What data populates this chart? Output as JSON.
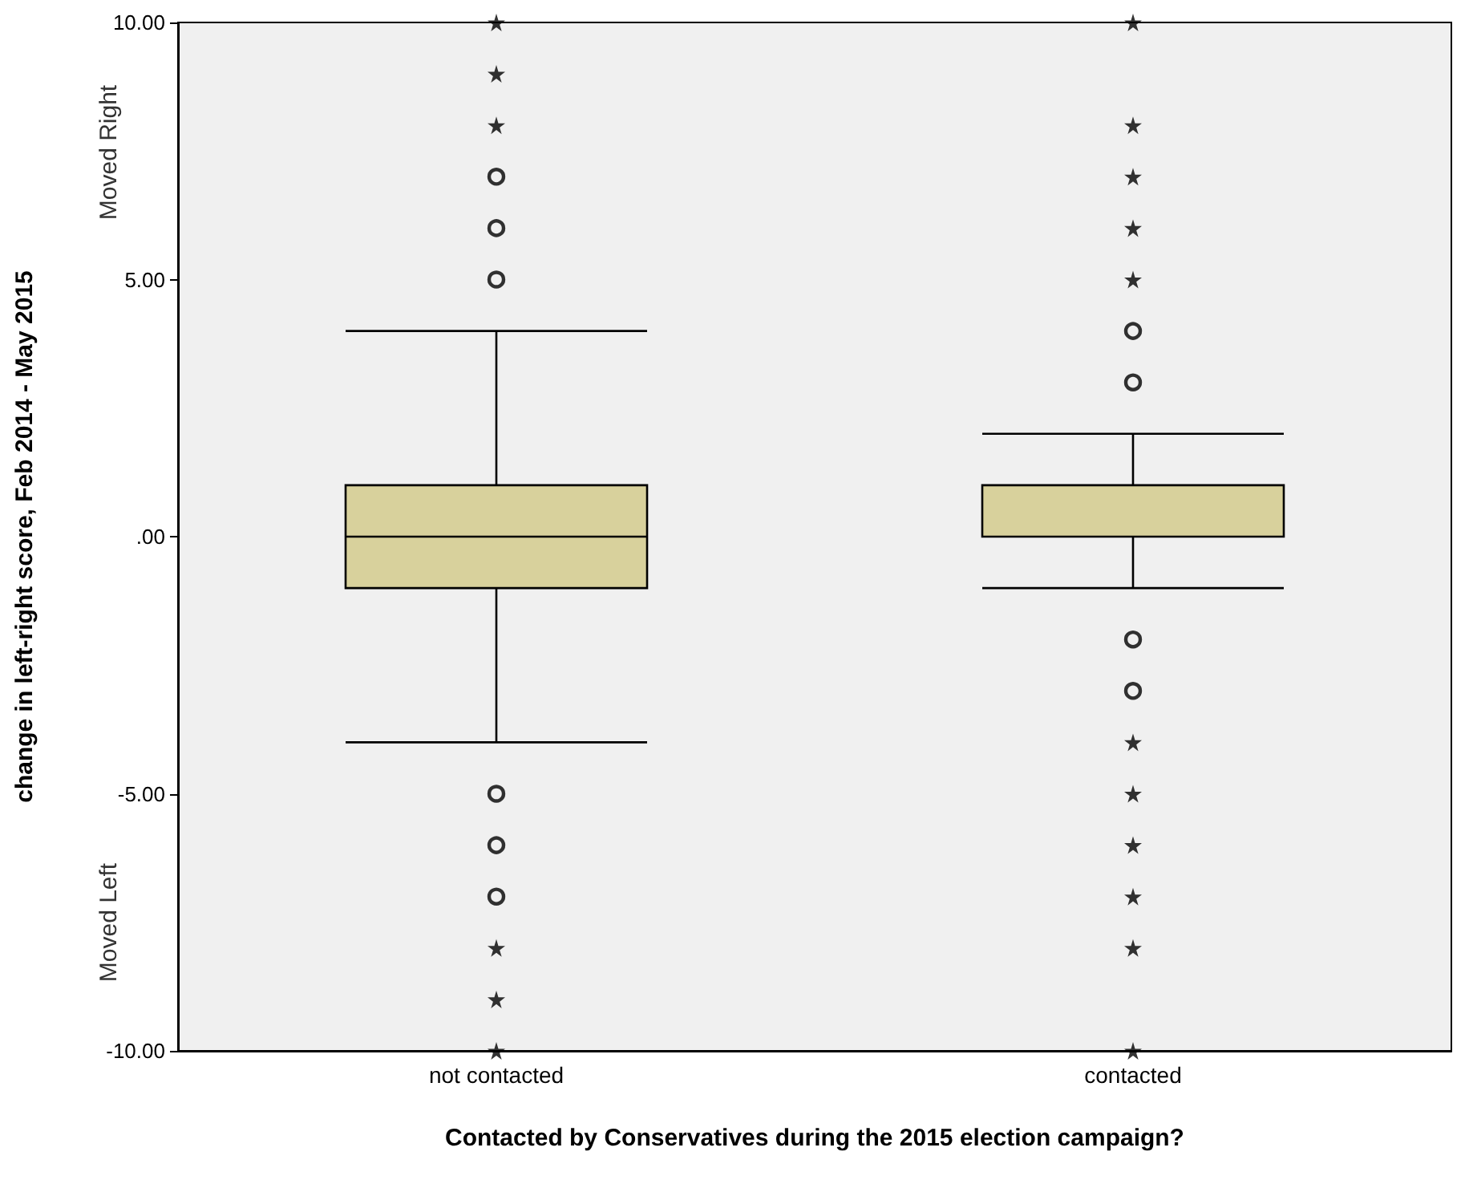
{
  "chart_data": {
    "type": "box",
    "xlabel": "Contacted by Conservatives during the 2015 election campaign?",
    "ylabel": "change in left-right score, Feb 2014 - May 2015",
    "annotations": [
      "Moved Right",
      "Moved Left"
    ],
    "categories": [
      "not contacted",
      "contacted"
    ],
    "color": "#d8d19c",
    "boxes": [
      {
        "low": -4,
        "q1": -1,
        "median": 0,
        "q3": 1,
        "high": 4,
        "outliers": [
          5,
          6,
          7,
          -5,
          -6,
          -7
        ]
      },
      {
        "low": -1,
        "q1": 0,
        "median": 0,
        "q3": 1,
        "high": 2,
        "outliers": [
          3,
          4,
          -2,
          -3
        ]
      }
    ],
    "series": [
      {
        "type": "scatter",
        "marker": "star",
        "color": "#000000",
        "x": [
          "not contacted",
          "not contacted",
          "not contacted",
          "not contacted",
          "not contacted",
          "not contacted",
          "contacted",
          "contacted",
          "contacted",
          "contacted",
          "contacted",
          "contacted",
          "contacted",
          "contacted",
          "contacted",
          "contacted",
          "contacted"
        ],
        "values": [
          8,
          9,
          10,
          -8,
          -9,
          -10,
          5,
          6,
          7,
          8,
          10,
          -4,
          -5,
          -6,
          -7,
          -8,
          -10
        ]
      }
    ],
    "ylim": [
      -10,
      10
    ],
    "yticks": [
      {
        "value": -10,
        "label": "-10.00"
      },
      {
        "value": -5,
        "label": "-5.00"
      },
      {
        "value": 0,
        "label": ".00"
      },
      {
        "value": 5,
        "label": "5.00"
      },
      {
        "value": 10,
        "label": "10.00"
      }
    ],
    "grid": false
  }
}
